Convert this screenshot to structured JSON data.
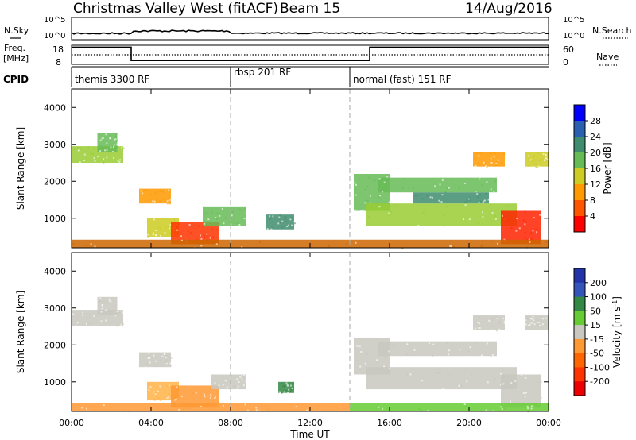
{
  "header": {
    "title": "Christmas Valley West (fitACF)",
    "beam": "Beam 15",
    "date": "14/Aug/2016"
  },
  "nsky_panel": {
    "left_label": "N.Sky",
    "right_label": "N.Search",
    "left_ticks": [
      "10^5",
      "10^0"
    ],
    "right_ticks": [
      "10^5",
      "10^0"
    ]
  },
  "freq_panel": {
    "left_label_line1": "Freq.",
    "left_label_line2": "[MHz]",
    "right_label": "Nave",
    "left_ticks": [
      "18",
      "8"
    ],
    "right_ticks": [
      "60",
      "0"
    ],
    "freq_series_hours": [
      0,
      3,
      3,
      15,
      15,
      24
    ],
    "freq_series_mhz": [
      17,
      17,
      10,
      10,
      17,
      17
    ],
    "nave_level": 30
  },
  "cpid_panel": {
    "label": "CPID",
    "modes": [
      {
        "text": "themis 3300 RF",
        "start_hour": 0
      },
      {
        "text": "rbsp 201 RF",
        "start_hour": 8
      },
      {
        "text": "normal (fast) 151 RF",
        "start_hour": 14
      }
    ]
  },
  "chart_data": [
    {
      "type": "heatmap",
      "name": "Power",
      "ylabel": "Slant Range [km]",
      "ylim": [
        200,
        4500
      ],
      "yticks": [
        1000,
        2000,
        3000,
        4000
      ],
      "xlim": [
        0,
        24
      ],
      "colorbar": {
        "label": "Power [dB]",
        "ticks": [
          "4",
          "8",
          "12",
          "16",
          "20",
          "24",
          "28"
        ],
        "colors": [
          "#0000ff",
          "#2b5fb0",
          "#3f8d6e",
          "#66bb55",
          "#cccc22",
          "#ff9900",
          "#ff5500",
          "#ff0000"
        ]
      },
      "regions": [
        {
          "t": [
            0,
            2.6
          ],
          "r": [
            2500,
            2950
          ],
          "color": "#99cc33"
        },
        {
          "t": [
            1.3,
            2.3
          ],
          "r": [
            2800,
            3300
          ],
          "color": "#66bb55"
        },
        {
          "t": [
            3.4,
            5.0
          ],
          "r": [
            1400,
            1800
          ],
          "color": "#ff9900"
        },
        {
          "t": [
            3.8,
            5.4
          ],
          "r": [
            500,
            1000
          ],
          "color": "#cccc22"
        },
        {
          "t": [
            5.0,
            7.4
          ],
          "r": [
            300,
            900
          ],
          "color": "#ff3300"
        },
        {
          "t": [
            6.6,
            8.8
          ],
          "r": [
            800,
            1300
          ],
          "color": "#66bb55"
        },
        {
          "t": [
            9.8,
            11.2
          ],
          "r": [
            700,
            1100
          ],
          "color": "#3f8d6e"
        },
        {
          "t": [
            14.2,
            16.0
          ],
          "r": [
            1200,
            2200
          ],
          "color": "#66bb55"
        },
        {
          "t": [
            14.8,
            22.4
          ],
          "r": [
            800,
            1400
          ],
          "color": "#99cc33"
        },
        {
          "t": [
            15.4,
            21.4
          ],
          "r": [
            1700,
            2100
          ],
          "color": "#66bb55"
        },
        {
          "t": [
            17.2,
            21.0
          ],
          "r": [
            1400,
            1700
          ],
          "color": "#3f8d6e"
        },
        {
          "t": [
            20.2,
            21.8
          ],
          "r": [
            2400,
            2800
          ],
          "color": "#ff9900"
        },
        {
          "t": [
            22.8,
            24.0
          ],
          "r": [
            2400,
            2800
          ],
          "color": "#cccc22"
        },
        {
          "t": [
            21.6,
            23.6
          ],
          "r": [
            300,
            1200
          ],
          "color": "#ff2200"
        },
        {
          "t": [
            0,
            24
          ],
          "r": [
            200,
            420
          ],
          "color": "#cc6600"
        }
      ]
    },
    {
      "type": "heatmap",
      "name": "Velocity",
      "ylabel": "Slant Range [km]",
      "ylim": [
        200,
        4500
      ],
      "yticks": [
        1000,
        2000,
        3000,
        4000
      ],
      "xlim": [
        0,
        24
      ],
      "xticks": [
        "00:00",
        "04:00",
        "08:00",
        "12:00",
        "16:00",
        "20:00",
        "00:00"
      ],
      "xlabel": "Time UT",
      "colorbar": {
        "label": "Velocity [m s^-1]",
        "ticks": [
          "200",
          "100",
          "50",
          "15",
          "-15",
          "-50",
          "-100",
          "-200"
        ],
        "colors": [
          "#2233aa",
          "#3355bb",
          "#338844",
          "#66cc33",
          "#c8c8c0",
          "#ff9933",
          "#ff6600",
          "#ff3300",
          "#ee0000"
        ]
      },
      "regions": [
        {
          "t": [
            0,
            2.6
          ],
          "r": [
            2500,
            2950
          ],
          "color": "#c8c8c0"
        },
        {
          "t": [
            1.3,
            2.3
          ],
          "r": [
            2800,
            3300
          ],
          "color": "#c8c8c0"
        },
        {
          "t": [
            3.4,
            5.0
          ],
          "r": [
            1400,
            1800
          ],
          "color": "#c8c8c0"
        },
        {
          "t": [
            3.8,
            5.4
          ],
          "r": [
            500,
            1000
          ],
          "color": "#ffb347"
        },
        {
          "t": [
            5.0,
            7.4
          ],
          "r": [
            300,
            900
          ],
          "color": "#ff9933"
        },
        {
          "t": [
            7.0,
            8.8
          ],
          "r": [
            800,
            1200
          ],
          "color": "#c8c8c0"
        },
        {
          "t": [
            10.4,
            11.2
          ],
          "r": [
            700,
            1000
          ],
          "color": "#338844"
        },
        {
          "t": [
            14.2,
            16.0
          ],
          "r": [
            1200,
            2200
          ],
          "color": "#c8c8c0"
        },
        {
          "t": [
            14.8,
            22.4
          ],
          "r": [
            800,
            1400
          ],
          "color": "#c8c8c0"
        },
        {
          "t": [
            15.4,
            21.4
          ],
          "r": [
            1700,
            2100
          ],
          "color": "#c8c8c0"
        },
        {
          "t": [
            20.2,
            21.8
          ],
          "r": [
            2400,
            2800
          ],
          "color": "#c8c8c0"
        },
        {
          "t": [
            22.8,
            24.0
          ],
          "r": [
            2400,
            2800
          ],
          "color": "#c8c8c0"
        },
        {
          "t": [
            21.6,
            23.6
          ],
          "r": [
            300,
            1200
          ],
          "color": "#c8c8c0"
        },
        {
          "t": [
            0,
            14
          ],
          "r": [
            200,
            420
          ],
          "color": "#ff9933"
        },
        {
          "t": [
            14,
            24
          ],
          "r": [
            200,
            420
          ],
          "color": "#66cc33"
        }
      ]
    }
  ]
}
